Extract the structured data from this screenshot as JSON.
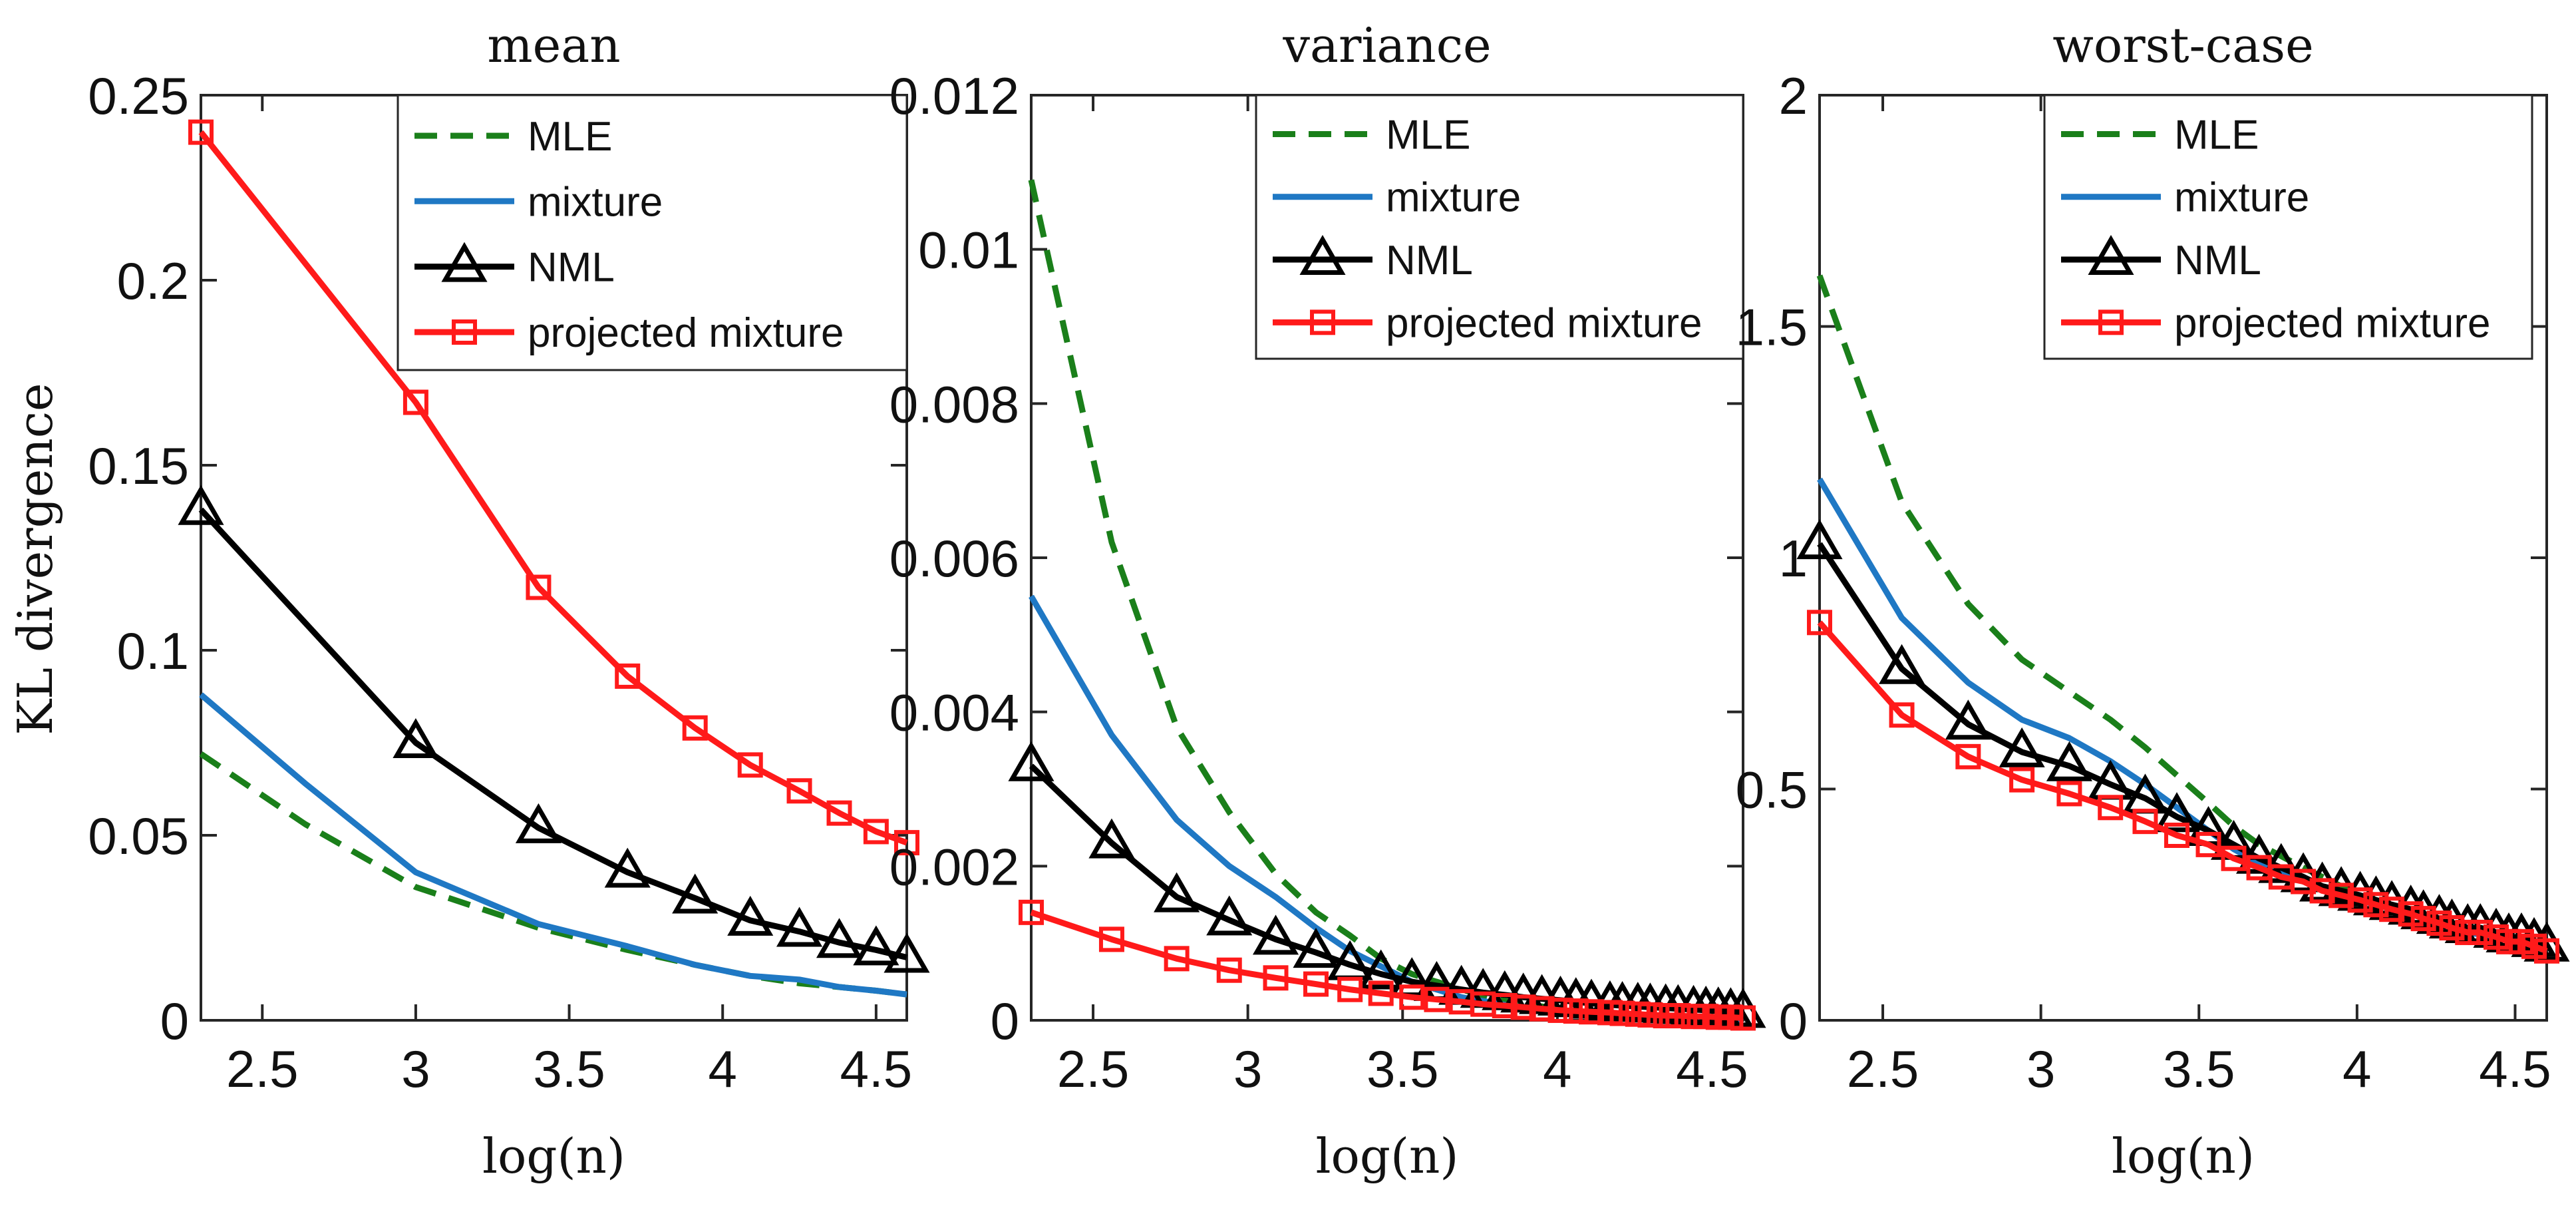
{
  "figure": {
    "ylabel": "KL divergence",
    "legend": [
      "MLE",
      "mixture",
      "NML",
      "projected mixture"
    ]
  },
  "colors": {
    "MLE": "#1a7f1a",
    "mixture": "#1f78c4",
    "NML": "#000000",
    "projected mixture": "#ff1a1a"
  },
  "chart_data": [
    {
      "type": "line",
      "title": "mean",
      "xlabel": "log(n)",
      "ylabel": "KL divergence",
      "xlim": [
        2.3,
        4.6
      ],
      "ylim": [
        0,
        0.25
      ],
      "xticks": [
        2.5,
        3,
        3.5,
        4,
        4.5
      ],
      "xtick_labels": [
        "2.5",
        "3",
        "3.5",
        "4",
        "4.5"
      ],
      "yticks": [
        0,
        0.05,
        0.1,
        0.15,
        0.2,
        0.25
      ],
      "ytick_labels": [
        "0",
        "0.05",
        "0.1",
        "0.15",
        "0.2",
        "0.25"
      ],
      "legend_position": "top-right",
      "series": [
        {
          "name": "MLE",
          "style": "dashed",
          "marker": "none",
          "x": [
            2.3,
            2.64,
            3.0,
            3.4,
            3.69,
            3.91,
            4.09,
            4.25,
            4.38,
            4.5,
            4.6
          ],
          "y": [
            0.072,
            0.053,
            0.036,
            0.025,
            0.019,
            0.015,
            0.012,
            0.01,
            0.009,
            0.008,
            0.007
          ]
        },
        {
          "name": "mixture",
          "style": "solid",
          "marker": "none",
          "x": [
            2.3,
            2.64,
            3.0,
            3.4,
            3.69,
            3.91,
            4.09,
            4.25,
            4.38,
            4.5,
            4.6
          ],
          "y": [
            0.088,
            0.064,
            0.04,
            0.026,
            0.02,
            0.015,
            0.012,
            0.011,
            0.009,
            0.008,
            0.007
          ]
        },
        {
          "name": "NML",
          "style": "solid",
          "marker": "triangle",
          "x": [
            2.3,
            3.0,
            3.4,
            3.69,
            3.91,
            4.09,
            4.25,
            4.38,
            4.5,
            4.6
          ],
          "y": [
            0.138,
            0.075,
            0.052,
            0.04,
            0.033,
            0.027,
            0.024,
            0.021,
            0.019,
            0.017
          ]
        },
        {
          "name": "projected mixture",
          "style": "solid",
          "marker": "square",
          "x": [
            2.3,
            3.0,
            3.4,
            3.69,
            3.91,
            4.09,
            4.25,
            4.38,
            4.5,
            4.6
          ],
          "y": [
            0.24,
            0.167,
            0.117,
            0.093,
            0.079,
            0.069,
            0.062,
            0.056,
            0.051,
            0.048
          ]
        }
      ]
    },
    {
      "type": "line",
      "title": "variance",
      "xlabel": "log(n)",
      "ylabel": "",
      "xlim": [
        2.3,
        4.6
      ],
      "ylim": [
        0,
        0.012
      ],
      "xticks": [
        2.5,
        3,
        3.5,
        4,
        4.5
      ],
      "xtick_labels": [
        "2.5",
        "3",
        "3.5",
        "4",
        "4.5"
      ],
      "yticks": [
        0,
        0.002,
        0.004,
        0.006,
        0.008,
        0.01,
        0.012
      ],
      "ytick_labels": [
        "0",
        "0.002",
        "0.004",
        "0.006",
        "0.008",
        "0.01",
        "0.012"
      ],
      "legend_position": "top-right",
      "series": [
        {
          "name": "MLE",
          "style": "dashed",
          "marker": "none",
          "x": [
            2.3,
            2.56,
            2.77,
            2.94,
            3.09,
            3.22,
            3.33,
            3.43,
            3.53,
            3.61,
            3.69,
            3.83,
            3.95,
            4.06,
            4.17,
            4.26,
            4.35,
            4.44,
            4.52,
            4.6
          ],
          "y": [
            0.0109,
            0.0062,
            0.0038,
            0.0027,
            0.0019,
            0.0014,
            0.0011,
            0.0008,
            0.0006,
            0.0005,
            0.0004,
            0.00025,
            0.00018,
            0.00012,
            9e-05,
            7e-05,
            5e-05,
            4e-05,
            3e-05,
            2e-05
          ]
        },
        {
          "name": "mixture",
          "style": "solid",
          "marker": "none",
          "x": [
            2.3,
            2.56,
            2.77,
            2.94,
            3.09,
            3.22,
            3.33,
            3.43,
            3.53,
            3.61,
            3.69,
            3.83,
            3.95,
            4.06,
            4.17,
            4.26,
            4.35,
            4.44,
            4.52,
            4.6
          ],
          "y": [
            0.0055,
            0.0037,
            0.0026,
            0.002,
            0.0016,
            0.0012,
            0.0009,
            0.0007,
            0.0005,
            0.0004,
            0.0003,
            0.0002,
            0.00014,
            0.0001,
            7e-05,
            5e-05,
            4e-05,
            3e-05,
            2e-05,
            1e-05
          ]
        },
        {
          "name": "NML",
          "style": "solid",
          "marker": "triangle",
          "x": [
            2.3,
            2.56,
            2.77,
            2.94,
            3.09,
            3.22,
            3.33,
            3.43,
            3.53,
            3.61,
            3.69,
            3.76,
            3.83,
            3.89,
            3.95,
            4.01,
            4.06,
            4.11,
            4.17,
            4.21,
            4.26,
            4.3,
            4.35,
            4.39,
            4.44,
            4.48,
            4.52,
            4.56,
            4.6
          ],
          "y": [
            0.0033,
            0.0023,
            0.0016,
            0.0013,
            0.00105,
            0.00088,
            0.00072,
            0.0006,
            0.0005,
            0.00045,
            0.0004,
            0.00036,
            0.00033,
            0.0003,
            0.00028,
            0.00026,
            0.00024,
            0.00022,
            0.0002,
            0.00019,
            0.00018,
            0.00017,
            0.00016,
            0.00015,
            0.00014,
            0.00013,
            0.00012,
            0.00011,
            0.0001
          ]
        },
        {
          "name": "projected mixture",
          "style": "solid",
          "marker": "square",
          "x": [
            2.3,
            2.56,
            2.77,
            2.94,
            3.09,
            3.22,
            3.33,
            3.43,
            3.53,
            3.61,
            3.69,
            3.76,
            3.83,
            3.89,
            3.95,
            4.01,
            4.06,
            4.11,
            4.17,
            4.21,
            4.26,
            4.3,
            4.35,
            4.39,
            4.44,
            4.48,
            4.52,
            4.56,
            4.6
          ],
          "y": [
            0.0014,
            0.00105,
            0.0008,
            0.00065,
            0.00055,
            0.00047,
            0.0004,
            0.00035,
            0.0003,
            0.00027,
            0.00024,
            0.00021,
            0.00019,
            0.00017,
            0.00015,
            0.00013,
            0.00012,
            0.00011,
            0.0001,
            9e-05,
            8e-05,
            7e-05,
            6e-05,
            6e-05,
            5e-05,
            5e-05,
            4e-05,
            4e-05,
            3e-05
          ]
        }
      ]
    },
    {
      "type": "line",
      "title": "worst-case",
      "xlabel": "log(n)",
      "ylabel": "",
      "xlim": [
        2.3,
        4.6
      ],
      "ylim": [
        0,
        2
      ],
      "xticks": [
        2.5,
        3,
        3.5,
        4,
        4.5
      ],
      "xtick_labels": [
        "2.5",
        "3",
        "3.5",
        "4",
        "4.5"
      ],
      "yticks": [
        0,
        0.5,
        1,
        1.5,
        2
      ],
      "ytick_labels": [
        "0",
        "0.5",
        "1",
        "1.5",
        "2"
      ],
      "legend_position": "top-right",
      "series": [
        {
          "name": "MLE",
          "style": "dashed",
          "marker": "none",
          "x": [
            2.3,
            2.56,
            2.77,
            2.94,
            3.09,
            3.22,
            3.33,
            3.43,
            3.53,
            3.61,
            3.69,
            3.83,
            3.95,
            4.06,
            4.17,
            4.26,
            4.35,
            4.44,
            4.52,
            4.6
          ],
          "y": [
            1.61,
            1.12,
            0.9,
            0.78,
            0.71,
            0.65,
            0.59,
            0.53,
            0.47,
            0.42,
            0.38,
            0.33,
            0.29,
            0.26,
            0.24,
            0.22,
            0.2,
            0.19,
            0.17,
            0.16
          ]
        },
        {
          "name": "mixture",
          "style": "solid",
          "marker": "none",
          "x": [
            2.3,
            2.56,
            2.77,
            2.94,
            3.09,
            3.22,
            3.33,
            3.43,
            3.53,
            3.61,
            3.69,
            3.83,
            3.95,
            4.06,
            4.17,
            4.26,
            4.35,
            4.44,
            4.52,
            4.6
          ],
          "y": [
            1.17,
            0.87,
            0.73,
            0.65,
            0.61,
            0.56,
            0.51,
            0.46,
            0.41,
            0.37,
            0.34,
            0.3,
            0.27,
            0.25,
            0.23,
            0.21,
            0.19,
            0.18,
            0.17,
            0.15
          ]
        },
        {
          "name": "NML",
          "style": "solid",
          "marker": "triangle",
          "x": [
            2.3,
            2.56,
            2.77,
            2.94,
            3.09,
            3.22,
            3.33,
            3.43,
            3.53,
            3.61,
            3.69,
            3.76,
            3.83,
            3.89,
            3.95,
            4.01,
            4.06,
            4.11,
            4.17,
            4.21,
            4.26,
            4.3,
            4.35,
            4.39,
            4.44,
            4.48,
            4.52,
            4.56,
            4.6
          ],
          "y": [
            1.03,
            0.76,
            0.64,
            0.58,
            0.55,
            0.51,
            0.48,
            0.44,
            0.41,
            0.38,
            0.35,
            0.33,
            0.31,
            0.29,
            0.28,
            0.27,
            0.26,
            0.25,
            0.24,
            0.23,
            0.22,
            0.21,
            0.2,
            0.2,
            0.19,
            0.18,
            0.18,
            0.17,
            0.16
          ]
        },
        {
          "name": "projected mixture",
          "style": "solid",
          "marker": "square",
          "x": [
            2.3,
            2.56,
            2.77,
            2.94,
            3.09,
            3.22,
            3.33,
            3.43,
            3.53,
            3.61,
            3.69,
            3.76,
            3.83,
            3.89,
            3.95,
            4.01,
            4.06,
            4.11,
            4.17,
            4.21,
            4.26,
            4.3,
            4.35,
            4.39,
            4.44,
            4.48,
            4.52,
            4.56,
            4.6
          ],
          "y": [
            0.86,
            0.66,
            0.57,
            0.52,
            0.49,
            0.46,
            0.43,
            0.4,
            0.38,
            0.35,
            0.33,
            0.31,
            0.3,
            0.28,
            0.27,
            0.26,
            0.25,
            0.24,
            0.23,
            0.22,
            0.21,
            0.2,
            0.19,
            0.19,
            0.18,
            0.17,
            0.17,
            0.16,
            0.15
          ]
        }
      ]
    }
  ]
}
